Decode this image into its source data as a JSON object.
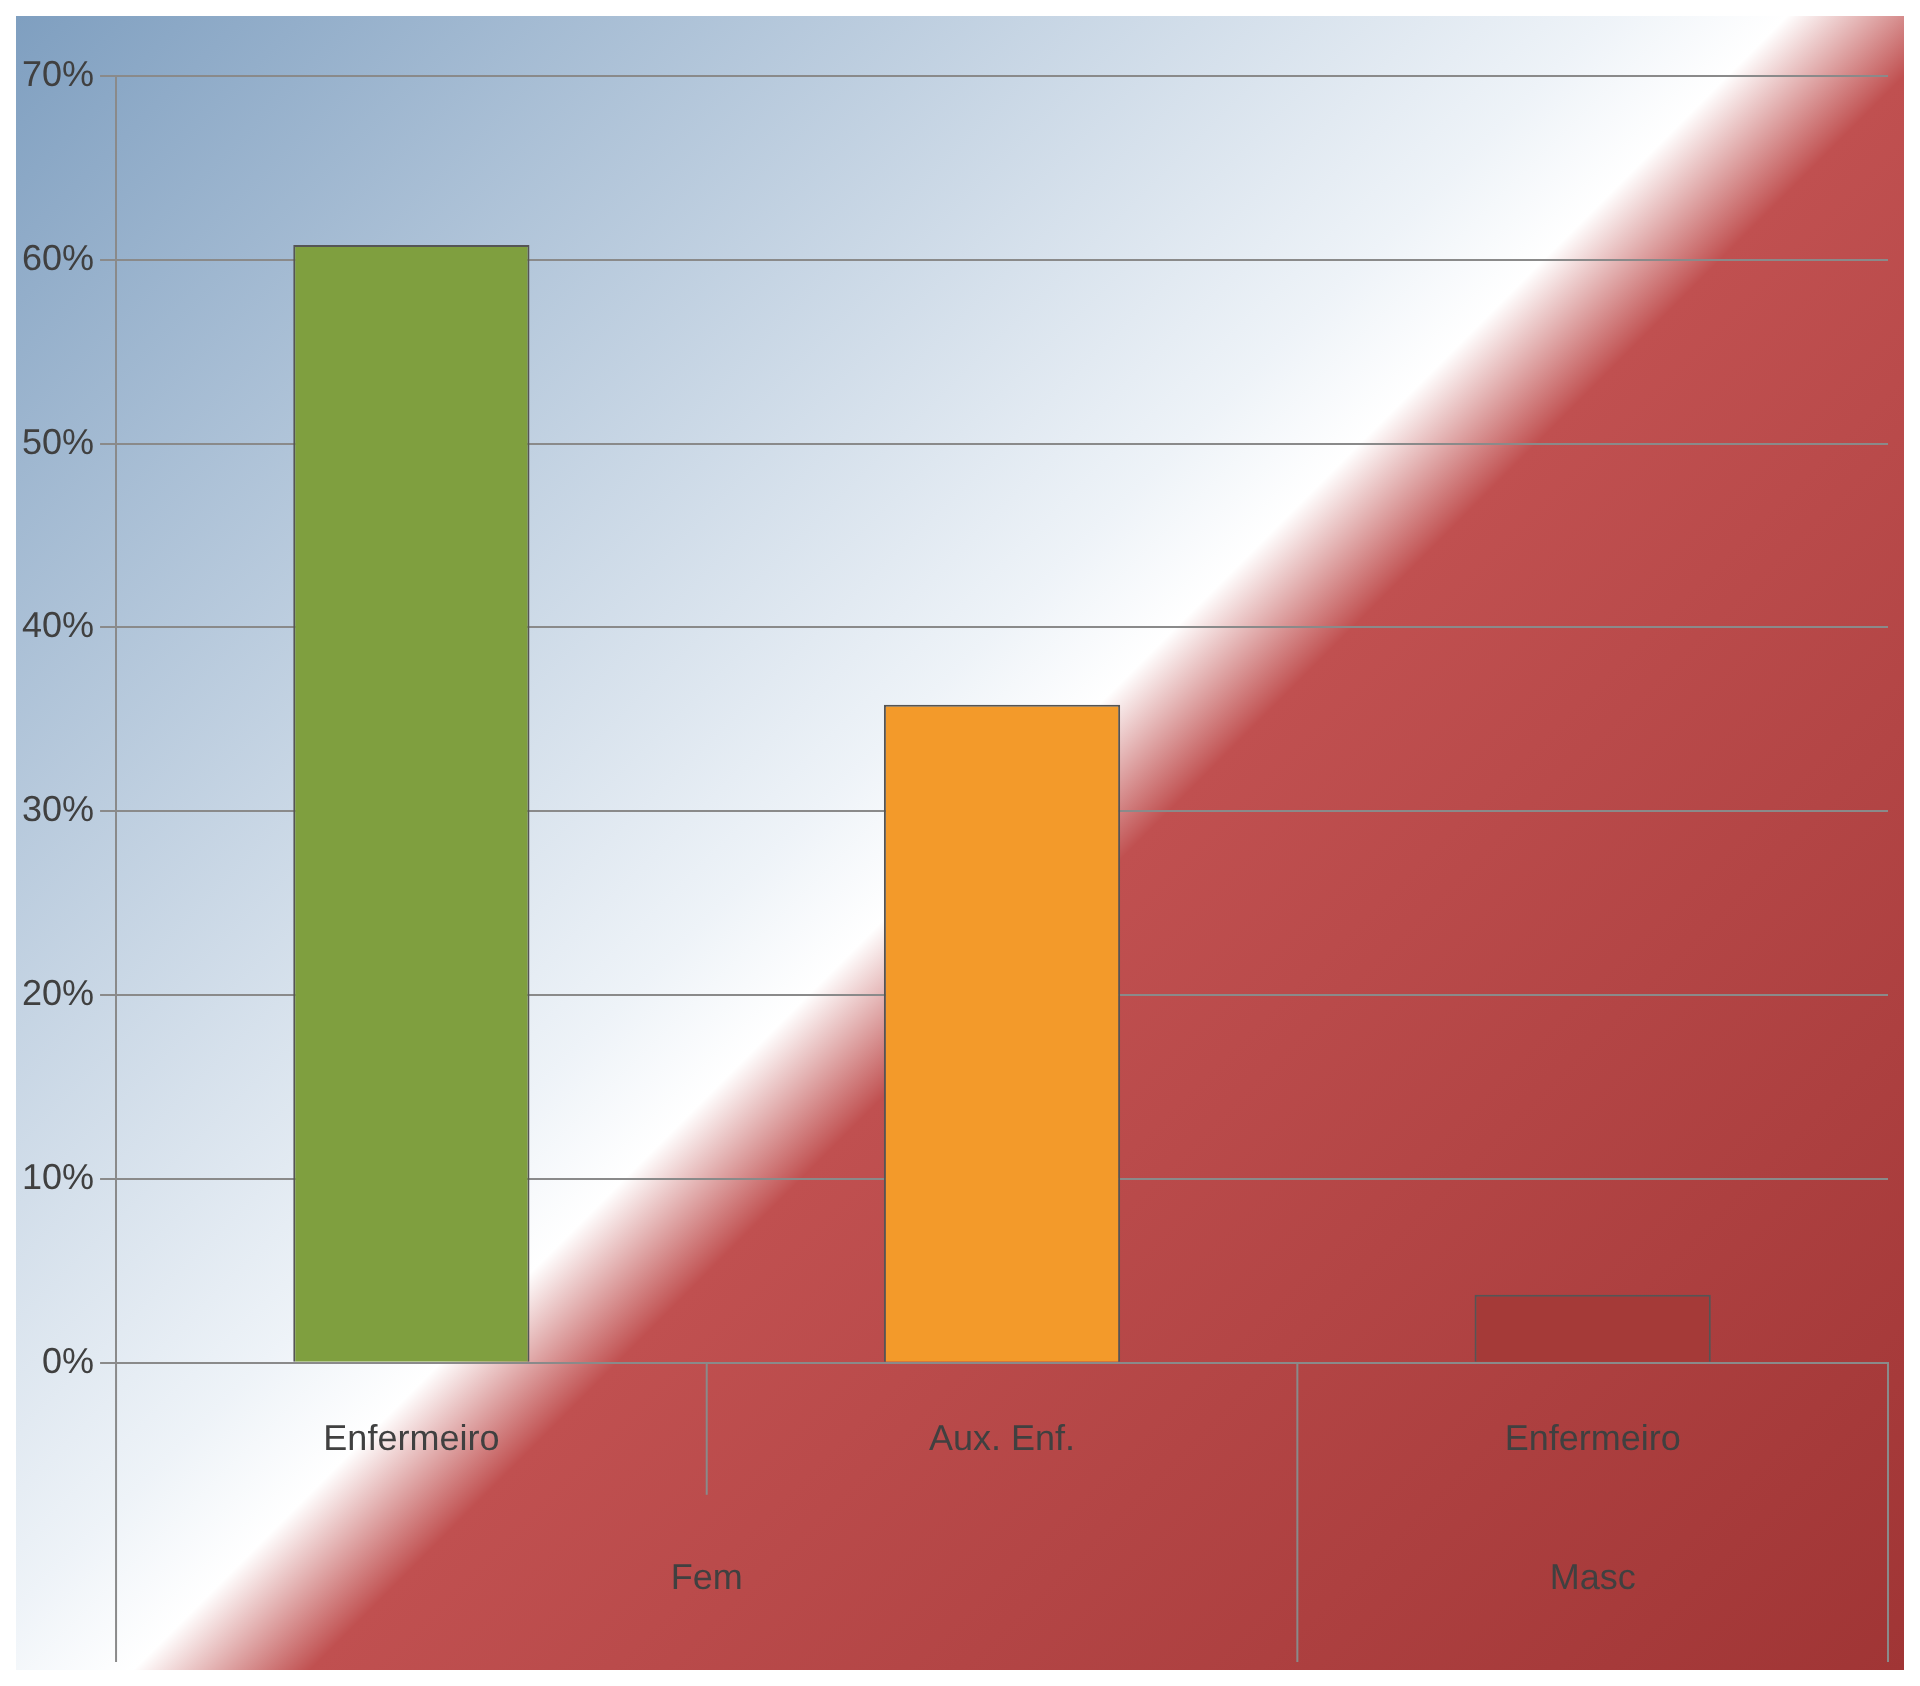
{
  "chart_data": {
    "type": "bar",
    "categories": [
      "Enfermeiro",
      "Aux. Enf.",
      "Enfermeiro"
    ],
    "values": [
      60.8,
      35.8,
      3.7
    ],
    "colors": [
      "#7f9f3f",
      "#f39a2a",
      "#a53a38"
    ],
    "ylim": [
      0,
      70
    ],
    "yticks": [
      {
        "value": 0,
        "label": "0%"
      },
      {
        "value": 10,
        "label": "10%"
      },
      {
        "value": 20,
        "label": "20%"
      },
      {
        "value": 30,
        "label": "30%"
      },
      {
        "value": 40,
        "label": "40%"
      },
      {
        "value": 50,
        "label": "50%"
      },
      {
        "value": 60,
        "label": "60%"
      },
      {
        "value": 70,
        "label": "70%"
      }
    ],
    "grid": "y",
    "annotations": [
      "Fem",
      "Masc"
    ]
  }
}
